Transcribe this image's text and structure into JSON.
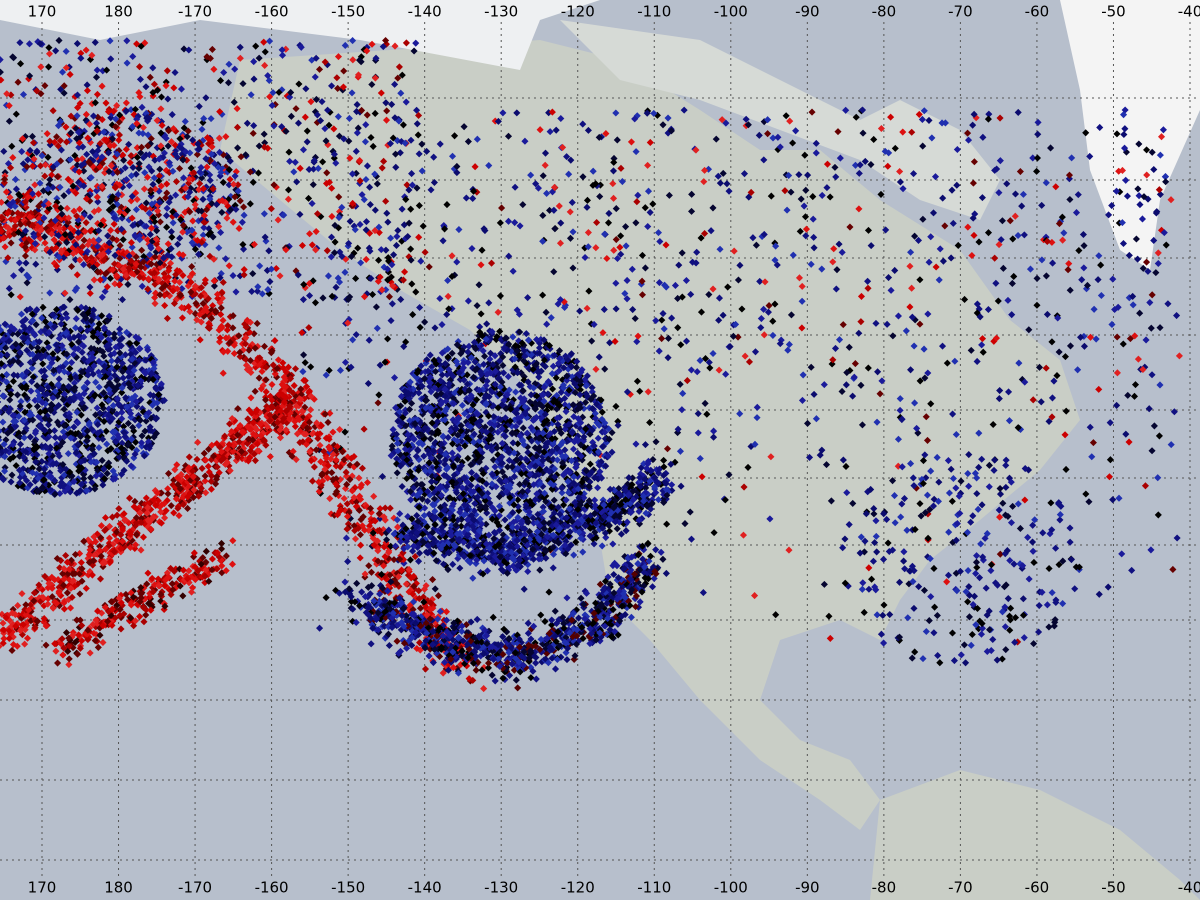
{
  "map": {
    "top_labels": [
      "170",
      "180",
      "-170",
      "-160",
      "-150",
      "-140",
      "-130",
      "-120",
      "-110",
      "-100",
      "-90",
      "-80",
      "-70",
      "-60",
      "-50",
      "-40"
    ],
    "bottom_labels": [
      "170",
      "180",
      "-170",
      "-160",
      "-150",
      "-140",
      "-130",
      "-120",
      "-110",
      "-100",
      "-90",
      "-80",
      "-70",
      "-60",
      "-50",
      "-40"
    ]
  }
}
